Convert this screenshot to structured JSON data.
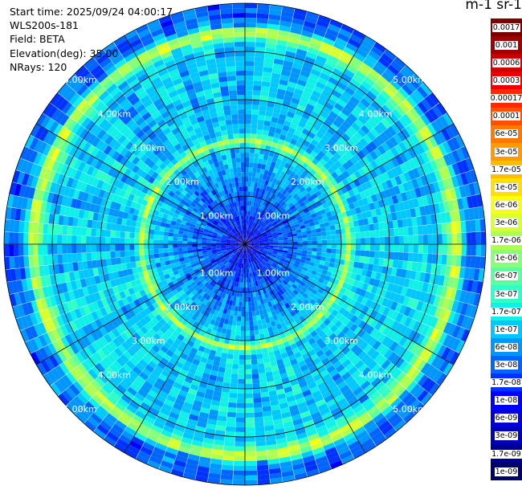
{
  "header": {
    "start_time": "Start time: 2025/09/24 04:00:17",
    "instrument": "WLS200s-181",
    "field": "Field: BETA",
    "elevation": "Elevation(deg): 35.00",
    "nrays": "NRays: 120",
    "unit_label": "m-1 sr-1"
  },
  "chart_data": {
    "type": "heatmap",
    "projection": "polar-ppi",
    "field": "BETA",
    "elevation_deg": 35.0,
    "n_rays": 120,
    "max_range_km": 5.0,
    "range_rings_km": [
      1,
      2,
      3,
      4,
      5
    ],
    "range_ring_labels": [
      "1.00km",
      "2.00km",
      "3.00km",
      "4.00km",
      "5.00km"
    ],
    "spokes_deg": [
      0,
      30,
      60,
      90,
      120,
      150,
      180,
      210,
      240,
      270,
      300,
      330
    ],
    "colorbar": {
      "labels": [
        "0.0017",
        "0.001",
        "0.0006",
        "0.0003",
        "0.00017",
        "0.0001",
        "6e-05",
        "3e-05",
        "1.7e-05",
        "1e-05",
        "6e-06",
        "3e-06",
        "1.7e-06",
        "1e-06",
        "6e-07",
        "3e-07",
        "1.7e-07",
        "1e-07",
        "6e-08",
        "3e-08",
        "1.7e-08",
        "1e-08",
        "6e-09",
        "3e-09",
        "1.7e-09",
        "1e-09"
      ],
      "colors": [
        "#7a0000",
        "#a00000",
        "#cc0000",
        "#f00000",
        "#ff2800",
        "#ff5000",
        "#ff7800",
        "#ff9a00",
        "#ffbc00",
        "#ffe000",
        "#f8ff10",
        "#d8ff30",
        "#b0ff50",
        "#88ff78",
        "#5affa0",
        "#30ffc8",
        "#10f0e8",
        "#00c8ff",
        "#0096ff",
        "#0064ff",
        "#0032ff",
        "#0000ff",
        "#0000d8",
        "#0000b4",
        "#000090",
        "#00006c"
      ]
    },
    "range_profile": {
      "range_km": [
        0.0,
        0.5,
        1.0,
        1.5,
        2.0,
        2.15,
        2.3,
        2.8,
        3.2,
        3.5,
        3.8,
        4.1,
        4.3,
        4.4,
        4.55,
        4.7,
        5.0
      ],
      "level_index": [
        22,
        20,
        19,
        18,
        17,
        12,
        17,
        17,
        17,
        17,
        17,
        17,
        14,
        10,
        17,
        19,
        19
      ]
    }
  }
}
